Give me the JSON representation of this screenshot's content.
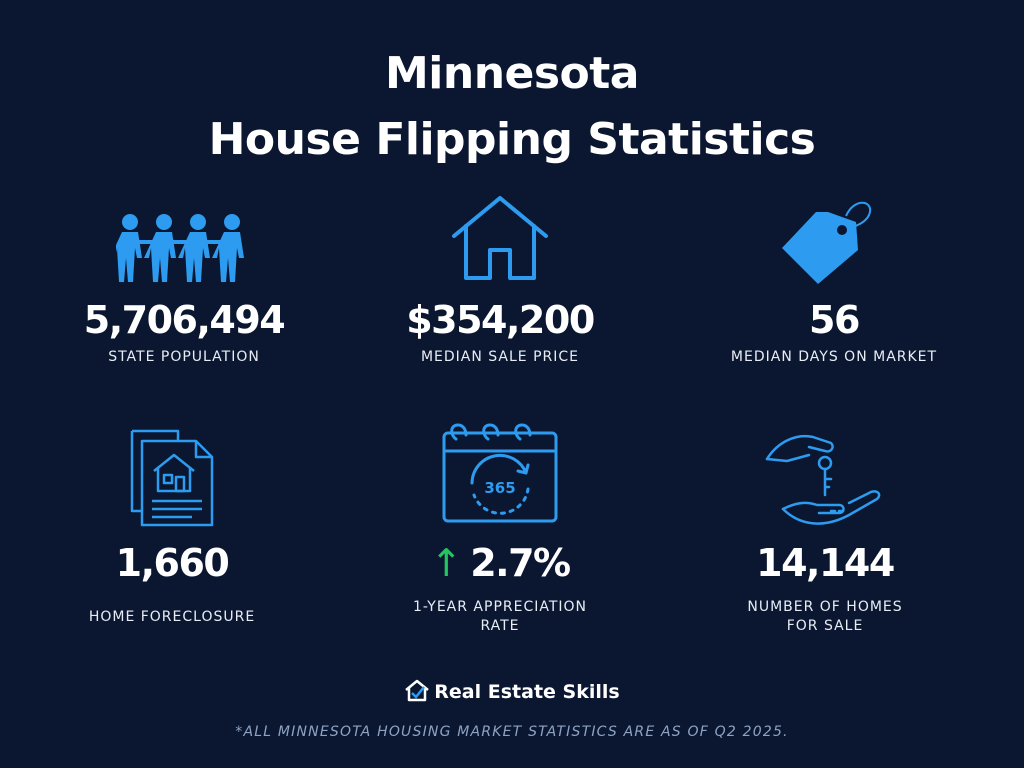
{
  "header": {
    "title_line1": "Minnesota",
    "title_line2": "House Flipping Statistics"
  },
  "stats": [
    {
      "value": "5,706,494",
      "label": "STATE POPULATION",
      "icon": "people-icon"
    },
    {
      "value": "$354,200",
      "label": "MEDIAN SALE PRICE",
      "icon": "house-icon"
    },
    {
      "value": "56",
      "label": "MEDIAN DAYS ON MARKET",
      "icon": "price-tag-icon"
    },
    {
      "value": "1,660",
      "label": "HOME FORECLOSURE",
      "icon": "foreclosure-document-icon"
    },
    {
      "value": "2.7%",
      "label": "1-YEAR APPRECIATION\nRATE",
      "icon": "calendar-365-icon",
      "trend": "↑"
    },
    {
      "value": "14,144",
      "label": "NUMBER OF HOMES\nFOR SALE",
      "icon": "hand-keys-icon"
    }
  ],
  "brand": {
    "name": "Real Estate Skills"
  },
  "footnote": "*ALL MINNESOTA HOUSING MARKET STATISTICS ARE AS OF Q2 2025.",
  "colors": {
    "background": "#0b1730",
    "icon_blue": "#2d9cf0",
    "trend_green": "#22c55e",
    "footnote": "#8ea3c4"
  },
  "calendar_badge": "365"
}
